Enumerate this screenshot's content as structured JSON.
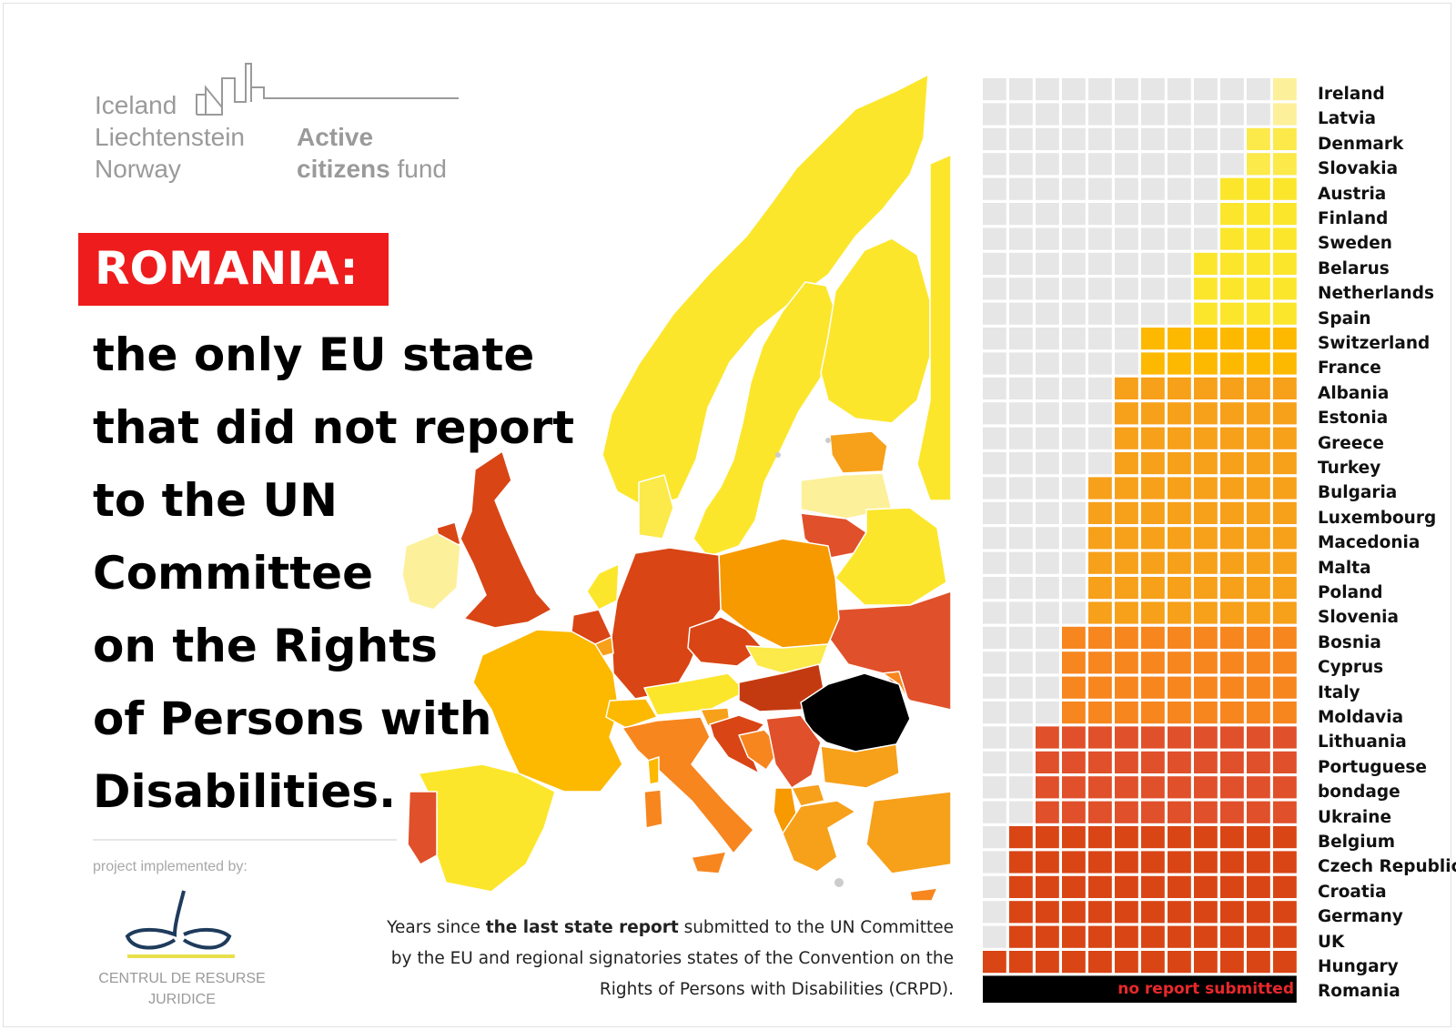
{
  "logo": {
    "countries": [
      "Iceland",
      "Liechtenstein",
      "Norway"
    ],
    "fund_word1": "Active",
    "fund_word2_bold": "citizens",
    "fund_word2_rest": " fund"
  },
  "headline": {
    "highlight": "ROMANIA:",
    "lines": [
      "the only EU state",
      "that did not report",
      "to the UN",
      "Committee",
      "on the Rights",
      "of Persons with",
      "Disabilities."
    ]
  },
  "project": {
    "implemented_by": "project implemented by:",
    "org_line1": "CENTRUL DE RESURSE",
    "org_line2": "JURIDICE"
  },
  "caption": {
    "part1": "Years since ",
    "bold": "the last state report",
    "part2": " submitted to the UN Committee by the EU and regional signatories states of the Convention on the Rights of Persons with Disabilities (CRPD)."
  },
  "chart_data": {
    "type": "bar",
    "orientation": "horizontal",
    "max_years": 12,
    "no_report_label": "no report submitted",
    "categories": [
      "Ireland",
      "Latvia",
      "Denmark",
      "Slovakia",
      "Austria",
      "Finland",
      "Sweden",
      "Belarus",
      "Netherlands",
      "Spain",
      "Switzerland",
      "France",
      "Albania",
      "Estonia",
      "Greece",
      "Turkey",
      "Bulgaria",
      "Luxembourg",
      "Macedonia",
      "Malta",
      "Poland",
      "Slovenia",
      "Bosnia",
      "Cyprus",
      "Italy",
      "Moldavia",
      "Lithuania",
      "Portuguese",
      "bondage",
      "Ukraine",
      "Belgium",
      "Czech Republic",
      "Croatia",
      "Germany",
      "UK",
      "Hungary",
      "Romania"
    ],
    "values": [
      1,
      1,
      2,
      2,
      3,
      3,
      3,
      4,
      4,
      4,
      6,
      6,
      7,
      7,
      7,
      7,
      8,
      8,
      8,
      8,
      8,
      8,
      9,
      9,
      9,
      9,
      10,
      10,
      10,
      10,
      11,
      11,
      11,
      11,
      11,
      12,
      null
    ],
    "colors": {
      "1": "#fdf09a",
      "2": "#fce94a",
      "3": "#fce62c",
      "4": "#fce62c",
      "6": "#fcb900",
      "7": "#f7a01a",
      "8": "#f7a01a",
      "9": "#f7861f",
      "10": "#e0502a",
      "11": "#d94515",
      "12": "#d94515",
      "empty": "#e6e6e6",
      "no_report": "#000000"
    }
  }
}
